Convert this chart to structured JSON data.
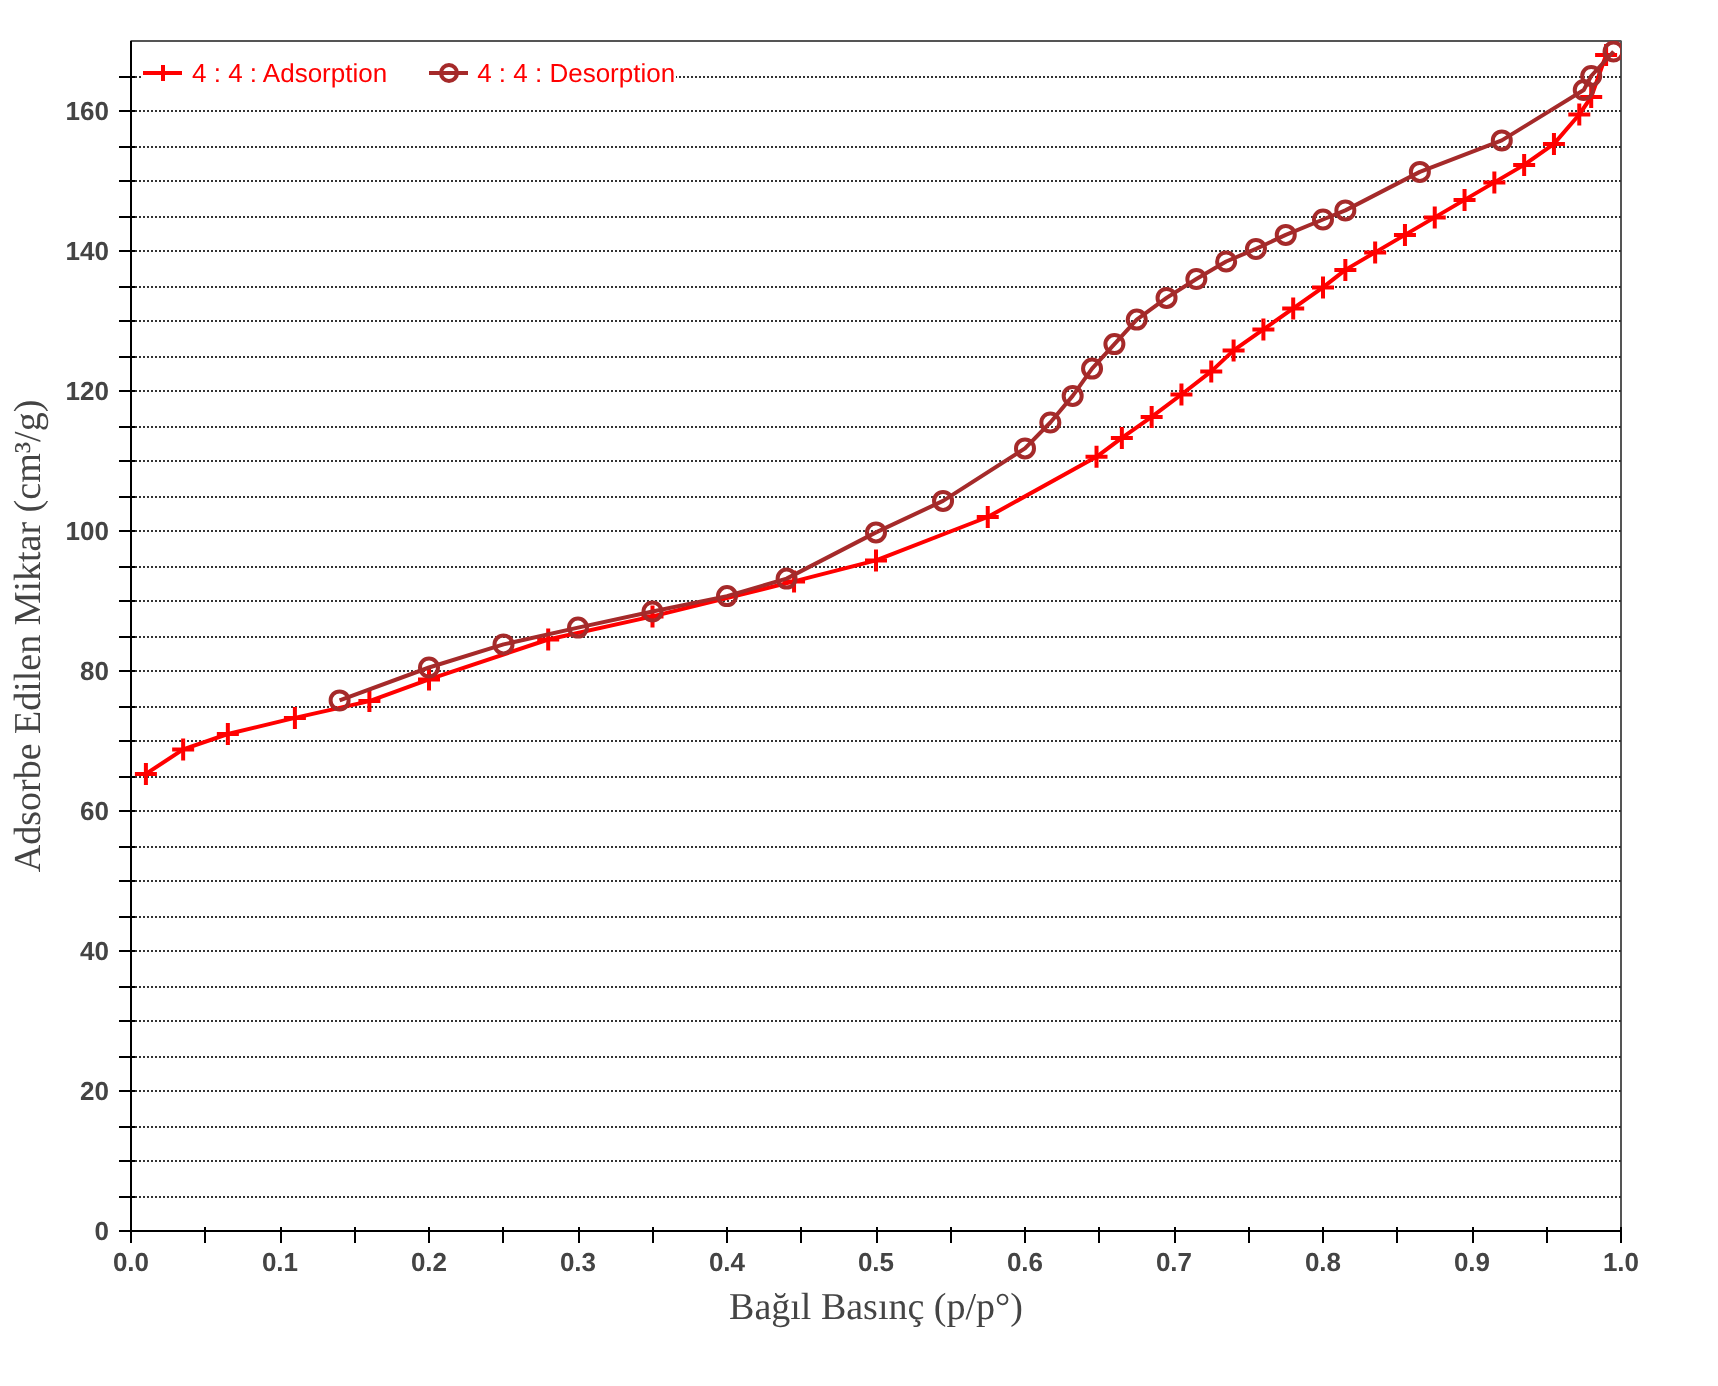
{
  "chart_data": {
    "type": "line",
    "xlabel": "Bağıl Basınç (p/p°)",
    "ylabel": "Adsorbe Edilen Miktar (cm³/g)",
    "xlim": [
      0,
      1
    ],
    "ylim": [
      0,
      170
    ],
    "xticks": [
      {
        "value": 0,
        "label": "0.0"
      },
      {
        "value": 0.05,
        "label": null
      },
      0.1,
      {
        "value": 0.15,
        "label": null
      },
      0.2,
      {
        "value": 0.25,
        "label": null
      },
      0.3,
      {
        "value": 0.35,
        "label": null
      },
      0.4,
      {
        "value": 0.45,
        "label": null
      },
      0.5,
      {
        "value": 0.55,
        "label": null
      },
      0.6,
      {
        "value": 0.65,
        "label": null
      },
      0.7,
      {
        "value": 0.75,
        "label": null
      },
      0.8,
      {
        "value": 0.85,
        "label": null
      },
      0.9,
      {
        "value": 0.95,
        "label": null
      },
      {
        "value": 1,
        "label": "1.0"
      }
    ],
    "yticks": [
      0,
      {
        "value": 5,
        "label": null
      },
      {
        "value": 10,
        "label": null
      },
      {
        "value": 15,
        "label": null
      },
      20,
      {
        "value": 25,
        "label": null
      },
      {
        "value": 30,
        "label": null
      },
      {
        "value": 35,
        "label": null
      },
      40,
      {
        "value": 45,
        "label": null
      },
      {
        "value": 50,
        "label": null
      },
      {
        "value": 55,
        "label": null
      },
      60,
      {
        "value": 65,
        "label": null
      },
      {
        "value": 70,
        "label": null
      },
      {
        "value": 75,
        "label": null
      },
      80,
      {
        "value": 85,
        "label": null
      },
      {
        "value": 90,
        "label": null
      },
      {
        "value": 95,
        "label": null
      },
      100,
      {
        "value": 105,
        "label": null
      },
      {
        "value": 110,
        "label": null
      },
      {
        "value": 115,
        "label": null
      },
      120,
      {
        "value": 125,
        "label": null
      },
      {
        "value": 130,
        "label": null
      },
      {
        "value": 135,
        "label": null
      },
      140,
      {
        "value": 145,
        "label": null
      },
      {
        "value": 150,
        "label": null
      },
      {
        "value": 155,
        "label": null
      },
      160,
      {
        "value": 165,
        "label": null
      }
    ],
    "grid": "y",
    "legend": "top left",
    "series": [
      {
        "name": "4 : 4 : Adsorption",
        "color": "#ff0000",
        "marker": "cross",
        "x": [
          0.01,
          0.035,
          0.065,
          0.11,
          0.16,
          0.2,
          0.28,
          0.35,
          0.445,
          0.5,
          0.575,
          0.648,
          0.665,
          0.685,
          0.705,
          0.725,
          0.74,
          0.76,
          0.78,
          0.8,
          0.815,
          0.835,
          0.855,
          0.875,
          0.895,
          0.915,
          0.935,
          0.955,
          0.972,
          0.98,
          0.99
        ],
        "values": [
          65.3,
          68.8,
          71,
          73.3,
          75.7,
          78.8,
          84.5,
          87.8,
          92.8,
          95.8,
          102,
          110.6,
          113.3,
          116.3,
          119.5,
          122.8,
          125.8,
          128.8,
          131.8,
          134.8,
          137.3,
          139.8,
          142.3,
          144.8,
          147.3,
          149.8,
          152.3,
          155.3,
          159.5,
          162,
          168
        ]
      },
      {
        "name": "4 : 4 : Desorption",
        "color": "#a52a2a",
        "marker": "circle",
        "x": [
          0.995,
          0.98,
          0.975,
          0.92,
          0.865,
          0.815,
          0.8,
          0.775,
          0.755,
          0.735,
          0.715,
          0.695,
          0.675,
          0.66,
          0.645,
          0.632,
          0.617,
          0.6,
          0.545,
          0.5,
          0.44,
          0.4,
          0.35,
          0.3,
          0.25,
          0.2,
          0.14
        ],
        "values": [
          168.5,
          165,
          163,
          155.8,
          151.3,
          145.8,
          144.5,
          142.3,
          140.3,
          138.5,
          136,
          133.3,
          130.2,
          126.7,
          123.2,
          119.3,
          115.5,
          111.8,
          104.3,
          99.8,
          93.2,
          90.7,
          88.5,
          86.2,
          83.8,
          80.5,
          75.8
        ]
      }
    ]
  }
}
